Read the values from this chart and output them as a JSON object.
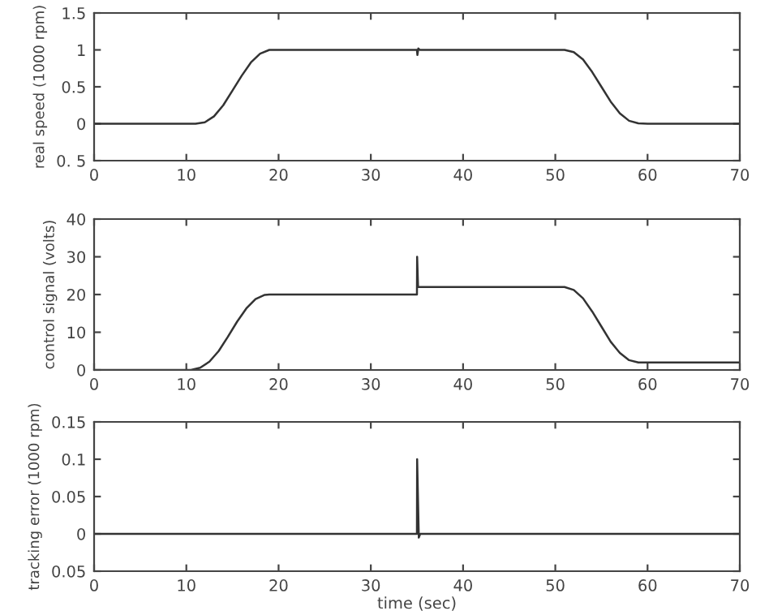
{
  "chart_data": [
    {
      "type": "line",
      "ylabel": "real speed (1000 rpm)",
      "xlim": [
        0,
        70
      ],
      "xticks": [
        0,
        10,
        20,
        30,
        40,
        50,
        60,
        70
      ],
      "ylim": [
        -0.5,
        1.5
      ],
      "yticks": [
        {
          "value": -0.5,
          "label": "0. 5"
        },
        0,
        0.5,
        1,
        1.5
      ],
      "grid": false,
      "legend": false,
      "series": [
        {
          "color": "#333333",
          "x": [
            0,
            11,
            12,
            13,
            14,
            15,
            16,
            17,
            18,
            19,
            35,
            35.05,
            35.15,
            35.3,
            51,
            52,
            53,
            54,
            55,
            56,
            57,
            58,
            59,
            60,
            70
          ],
          "values": [
            0,
            0,
            0.02,
            0.1,
            0.25,
            0.45,
            0.65,
            0.83,
            0.95,
            1,
            1,
            0.93,
            1.02,
            1,
            1,
            0.97,
            0.87,
            0.7,
            0.5,
            0.3,
            0.14,
            0.04,
            0.005,
            0,
            0
          ]
        }
      ]
    },
    {
      "type": "line",
      "ylabel": "control signal (volts)",
      "xlim": [
        0,
        70
      ],
      "xticks": [
        0,
        10,
        20,
        30,
        40,
        50,
        60,
        70
      ],
      "ylim": [
        0,
        40
      ],
      "yticks": [
        0,
        10,
        20,
        30,
        40
      ],
      "grid": false,
      "legend": false,
      "series": [
        {
          "color": "#333333",
          "x": [
            0,
            10.5,
            11.5,
            12.5,
            13.5,
            14.5,
            15.5,
            16.5,
            17.5,
            18.5,
            19,
            35,
            35.02,
            35.12,
            51,
            52,
            53,
            54,
            55,
            56,
            57,
            58,
            59,
            70
          ],
          "values": [
            0,
            0,
            0.6,
            2.2,
            5,
            8.8,
            12.8,
            16.3,
            18.8,
            19.9,
            20,
            20,
            30,
            22,
            22,
            21.2,
            19,
            15.5,
            11.5,
            7.5,
            4.5,
            2.6,
            2,
            2
          ]
        }
      ]
    },
    {
      "type": "line",
      "ylabel": "tracking error (1000 rpm)",
      "xlabel": "time (sec)",
      "xlim": [
        0,
        70
      ],
      "xticks": [
        0,
        10,
        20,
        30,
        40,
        50,
        60,
        70
      ],
      "ylim": [
        -0.05,
        0.15
      ],
      "yticks": [
        {
          "value": -0.05,
          "label": "0.05"
        },
        0,
        0.05,
        0.1,
        0.15
      ],
      "grid": false,
      "legend": false,
      "series": [
        {
          "color": "#333333",
          "x": [
            0,
            35,
            35.02,
            35.2,
            35.35,
            70
          ],
          "values": [
            0,
            0,
            0.1,
            -0.005,
            0,
            0
          ]
        }
      ]
    }
  ]
}
